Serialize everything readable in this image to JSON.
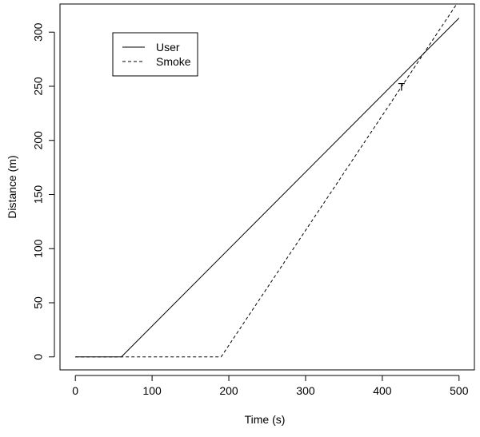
{
  "chart_data": {
    "type": "line",
    "title": "",
    "xlabel": "Time (s)",
    "ylabel": "Distance (m)",
    "xlim": [
      -20,
      520
    ],
    "ylim": [
      -12,
      326
    ],
    "xticks": [
      0,
      100,
      200,
      300,
      400,
      500
    ],
    "yticks": [
      0,
      50,
      100,
      150,
      200,
      250,
      300
    ],
    "grid": false,
    "legend_position": "top-left",
    "series": [
      {
        "name": "User",
        "style": "solid",
        "color": "#000000",
        "x": [
          0,
          60,
          500
        ],
        "y": [
          0,
          0,
          313
        ]
      },
      {
        "name": "Smoke",
        "style": "dashed",
        "color": "#000000",
        "x": [
          0,
          190,
          497
        ],
        "y": [
          0,
          0,
          326
        ]
      }
    ],
    "annotations": [
      {
        "text": "T",
        "x": 425,
        "y": 246
      }
    ]
  }
}
